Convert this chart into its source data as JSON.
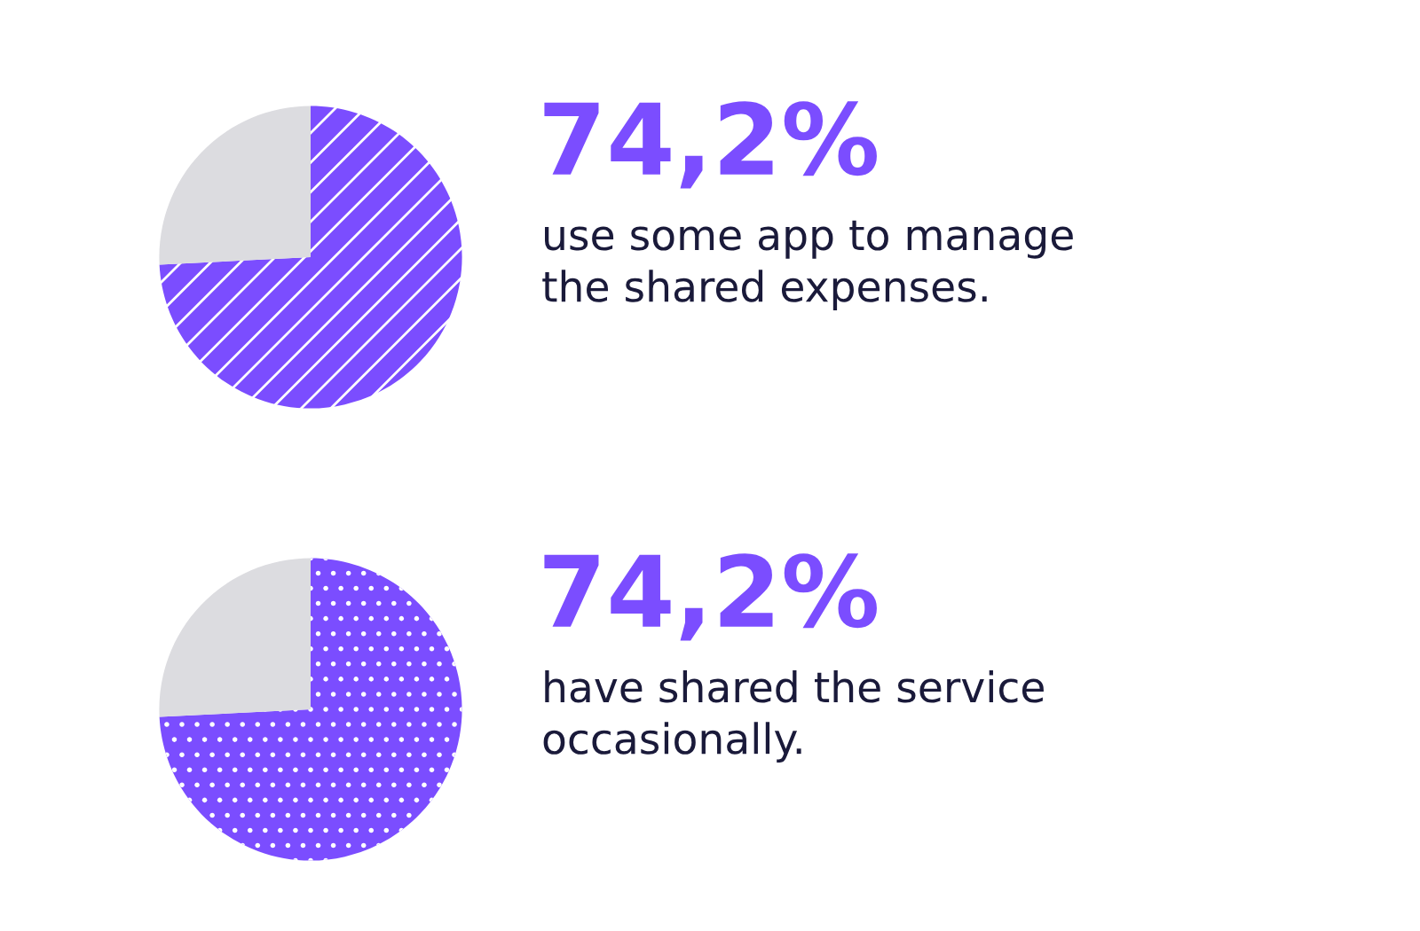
{
  "chart_data": [
    {
      "type": "pie",
      "title": "74,2%",
      "subtitle": "use some app to manage\nthe shared expenses.",
      "categories": [
        null,
        null
      ],
      "values": [
        74.2,
        25.8
      ],
      "colors": [
        "#7b4dff",
        "#dcdce0"
      ]
    },
    {
      "type": "pie",
      "title": "74,2%",
      "subtitle": "have shared the service\noccasionally.",
      "categories": [
        null,
        null
      ],
      "values": [
        74.2,
        25.8
      ],
      "colors": [
        "#7b4dff",
        "#dcdce0"
      ]
    }
  ]
}
